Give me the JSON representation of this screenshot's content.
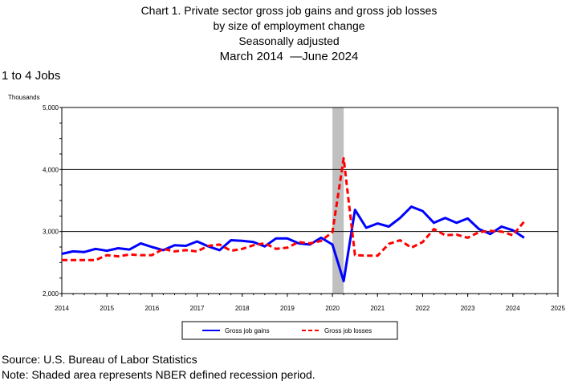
{
  "title": {
    "line1": "Chart 1. Private sector gross job gains and gross job losses",
    "line2": "by size of employment change",
    "line3": "Seasonally adjusted",
    "date_start": "March 2014",
    "date_end": "June 2024"
  },
  "subtitle": "1 to 4 Jobs",
  "y_units": "Thousands",
  "footer": {
    "source": "Source: U.S. Bureau of Labor Statistics",
    "note": "Note: Shaded area represents NBER defined recession period."
  },
  "colors": {
    "gains": "#0000ff",
    "losses": "#ff0000",
    "recession": "#c0c0c0"
  },
  "chart_data": {
    "type": "line",
    "xlim": [
      2014,
      2025
    ],
    "ylim": [
      2000,
      5000
    ],
    "x_ticks": [
      "2014",
      "2015",
      "2016",
      "2017",
      "2018",
      "2019",
      "2020",
      "2021",
      "2022",
      "2023",
      "2024",
      "2025"
    ],
    "y_ticks": [
      "2,000",
      "3,000",
      "4,000",
      "5,000"
    ],
    "grid": "horizontal",
    "legend_position": "bottom",
    "recession": {
      "start": 2020.0,
      "end": 2020.25
    },
    "x": [
      2014.0,
      2014.25,
      2014.5,
      2014.75,
      2015.0,
      2015.25,
      2015.5,
      2015.75,
      2016.0,
      2016.25,
      2016.5,
      2016.75,
      2017.0,
      2017.25,
      2017.5,
      2017.75,
      2018.0,
      2018.25,
      2018.5,
      2018.75,
      2019.0,
      2019.25,
      2019.5,
      2019.75,
      2020.0,
      2020.25,
      2020.5,
      2020.75,
      2021.0,
      2021.25,
      2021.5,
      2021.75,
      2022.0,
      2022.25,
      2022.5,
      2022.75,
      2023.0,
      2023.25,
      2023.5,
      2023.75,
      2024.0,
      2024.25
    ],
    "series": [
      {
        "name": "Gross job gains",
        "style": "solid",
        "values": [
          2640,
          2680,
          2670,
          2720,
          2690,
          2730,
          2710,
          2810,
          2750,
          2700,
          2780,
          2770,
          2840,
          2760,
          2700,
          2860,
          2850,
          2830,
          2760,
          2890,
          2890,
          2810,
          2790,
          2900,
          2790,
          2200,
          3350,
          3060,
          3130,
          3080,
          3220,
          3400,
          3330,
          3140,
          3220,
          3140,
          3210,
          3040,
          2960,
          3080,
          3020,
          2900
        ]
      },
      {
        "name": "Gross job losses",
        "style": "dashed",
        "values": [
          2540,
          2540,
          2540,
          2540,
          2620,
          2600,
          2630,
          2620,
          2620,
          2720,
          2680,
          2700,
          2680,
          2770,
          2790,
          2690,
          2720,
          2780,
          2810,
          2720,
          2740,
          2830,
          2810,
          2850,
          2990,
          4180,
          2620,
          2610,
          2610,
          2800,
          2860,
          2740,
          2830,
          3040,
          2940,
          2950,
          2900,
          2990,
          3010,
          3000,
          2940,
          3160
        ]
      }
    ]
  }
}
